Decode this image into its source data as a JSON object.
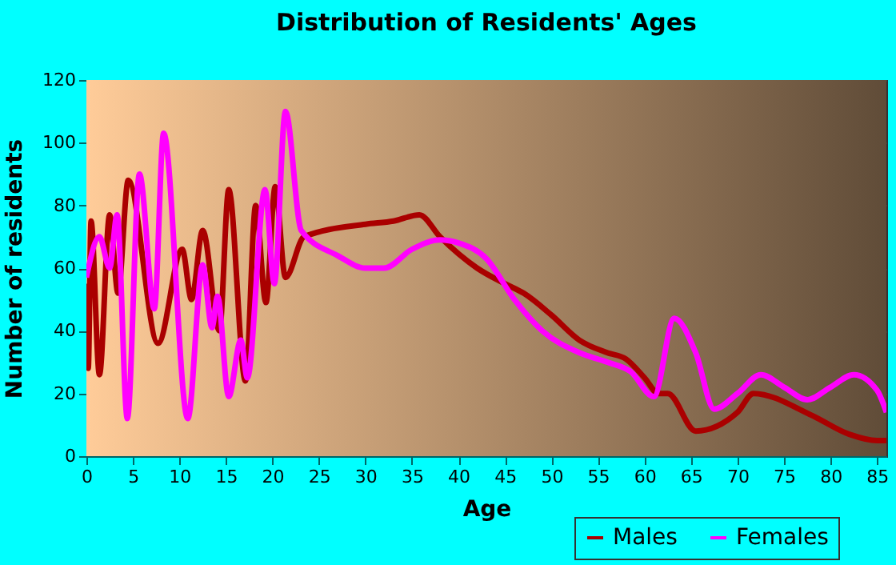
{
  "chart_data": {
    "type": "line",
    "title": "Distribution of Residents' Ages",
    "xlabel": "Age",
    "ylabel": "Number of residents",
    "xlim": [
      0,
      86
    ],
    "xticks": [
      0,
      5,
      10,
      15,
      20,
      25,
      30,
      35,
      40,
      45,
      50,
      55,
      60,
      65,
      70,
      75,
      80,
      85
    ],
    "ylim": [
      0,
      120
    ],
    "yticks": [
      0,
      20,
      40,
      60,
      80,
      100,
      120
    ],
    "grid": true,
    "legend": "bottom right",
    "marker": "none",
    "line_style": "solid",
    "series": [
      {
        "name": "Males",
        "color": "#aa0000",
        "x": [
          0,
          0.2,
          0.5,
          1.4,
          2.5,
          3.4,
          4.5,
          7.7,
          10.3,
          11.3,
          12.5,
          14.3,
          15.3,
          17.1,
          18.2,
          19.3,
          20.3,
          21.4,
          23.4,
          30,
          33,
          35.8,
          38,
          42,
          45,
          47,
          50,
          53,
          56,
          58,
          60,
          61.5,
          62.5,
          65.5,
          70,
          71.7,
          78,
          82,
          85,
          86
        ],
        "values": [
          55,
          28,
          75,
          26,
          77,
          52,
          88,
          36,
          66,
          50,
          72,
          40,
          85,
          24,
          80,
          49,
          86,
          57,
          70,
          74,
          75,
          77,
          70,
          60,
          55,
          52,
          45,
          37,
          33,
          31,
          25,
          20,
          20,
          8,
          14,
          20,
          13,
          7,
          5,
          5
        ]
      },
      {
        "name": "Females",
        "color": "#ff00ff",
        "x": [
          0,
          1.4,
          2.5,
          3.3,
          4.4,
          5.7,
          7.3,
          8.3,
          10.9,
          12.5,
          13.5,
          14.1,
          15.3,
          16.6,
          17.3,
          19.2,
          20.2,
          21.4,
          23.1,
          27,
          30,
          32,
          35,
          38,
          40,
          43,
          46,
          49,
          53,
          56,
          58.5,
          61,
          63.2,
          65.5,
          67.5,
          70,
          72.5,
          75,
          77.5,
          80,
          82.5,
          85,
          86
        ],
        "values": [
          57,
          70,
          60,
          77,
          12,
          90,
          47,
          103,
          12,
          61,
          41,
          51,
          19,
          37,
          25,
          85,
          55,
          110,
          72,
          64,
          60,
          60,
          66,
          69,
          68,
          63,
          50,
          40,
          33,
          30,
          27,
          19,
          44,
          33,
          15,
          20,
          26,
          22,
          18,
          22,
          26,
          21,
          14
        ]
      }
    ]
  }
}
